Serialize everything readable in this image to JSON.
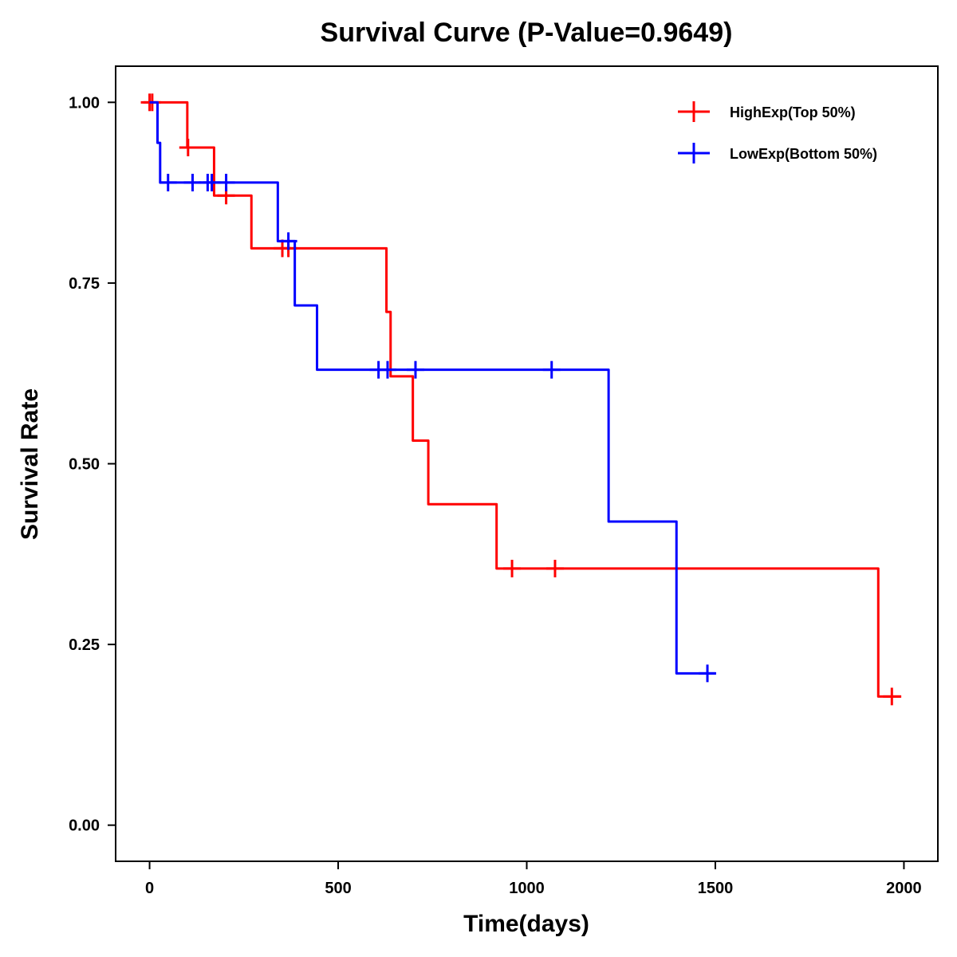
{
  "chart_data": {
    "type": "line",
    "subtype": "kaplan-meier-step",
    "title": "Survival Curve (P-Value=0.9649)",
    "xlabel": "Time(days)",
    "ylabel": "Survival Rate",
    "xlim": [
      -90,
      2090
    ],
    "ylim": [
      -0.05,
      1.05
    ],
    "x_ticks": [
      0,
      500,
      1000,
      1500,
      2000
    ],
    "x_tick_labels": [
      "0",
      "500",
      "1000",
      "1500",
      "2000"
    ],
    "y_ticks": [
      0,
      0.25,
      0.5,
      0.75,
      1.0
    ],
    "y_tick_labels": [
      "0.00",
      "0.25",
      "0.50",
      "0.75",
      "1.00"
    ],
    "grid": false,
    "legend_position": "top-right",
    "series": [
      {
        "name": "HighExp(Top 50%)",
        "color": "#ff0000",
        "steps": [
          {
            "time": 0,
            "survival": 1.0
          },
          {
            "time": 100,
            "survival": 0.9375
          },
          {
            "time": 171,
            "survival": 0.871
          },
          {
            "time": 270,
            "survival": 0.798
          },
          {
            "time": 628,
            "survival": 0.71
          },
          {
            "time": 639,
            "survival": 0.621
          },
          {
            "time": 698,
            "survival": 0.532
          },
          {
            "time": 739,
            "survival": 0.444
          },
          {
            "time": 920,
            "survival": 0.355
          },
          {
            "time": 1932,
            "survival": 0.178
          }
        ],
        "end_time": 1993,
        "censored": [
          {
            "time": 0,
            "survival": 1.0
          },
          {
            "time": 7,
            "survival": 1.0
          },
          {
            "time": 102,
            "survival": 0.9375
          },
          {
            "time": 203,
            "survival": 0.871
          },
          {
            "time": 352,
            "survival": 0.798
          },
          {
            "time": 368,
            "survival": 0.798
          },
          {
            "time": 961,
            "survival": 0.355
          },
          {
            "time": 1075,
            "survival": 0.355
          },
          {
            "time": 1968,
            "survival": 0.178
          }
        ]
      },
      {
        "name": "LowExp(Bottom 50%)",
        "color": "#0000ff",
        "steps": [
          {
            "time": 0,
            "survival": 1.0
          },
          {
            "time": 21,
            "survival": 0.944
          },
          {
            "time": 28,
            "survival": 0.889
          },
          {
            "time": 340,
            "survival": 0.808
          },
          {
            "time": 385,
            "survival": 0.719
          },
          {
            "time": 444,
            "survival": 0.63
          },
          {
            "time": 1217,
            "survival": 0.42
          },
          {
            "time": 1397,
            "survival": 0.21
          }
        ],
        "end_time": 1500,
        "censored": [
          {
            "time": 49,
            "survival": 0.889
          },
          {
            "time": 114,
            "survival": 0.889
          },
          {
            "time": 154,
            "survival": 0.889
          },
          {
            "time": 165,
            "survival": 0.889
          },
          {
            "time": 203,
            "survival": 0.889
          },
          {
            "time": 368,
            "survival": 0.808
          },
          {
            "time": 607,
            "survival": 0.63
          },
          {
            "time": 631,
            "survival": 0.63
          },
          {
            "time": 705,
            "survival": 0.63
          },
          {
            "time": 1066,
            "survival": 0.63
          },
          {
            "time": 1479,
            "survival": 0.21
          }
        ]
      }
    ]
  }
}
